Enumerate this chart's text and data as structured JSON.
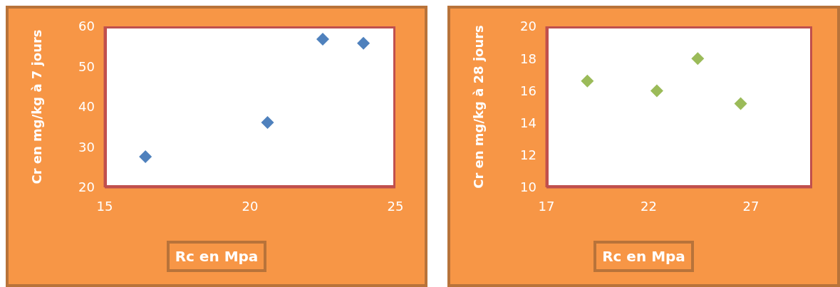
{
  "chart_data": [
    {
      "type": "scatter",
      "xlabel": "Rc en Mpa",
      "ylabel": "Cr en mg/kg  à 7 jours",
      "x": [
        16.4,
        20.6,
        22.5,
        23.9
      ],
      "values": [
        27.6,
        36.1,
        56.8,
        55.8
      ],
      "color": "#4f81bd",
      "marker": "diamond",
      "xlim": [
        15,
        25
      ],
      "xticks": [
        15,
        20,
        25
      ],
      "ylim": [
        20,
        60
      ],
      "yticks": [
        20,
        30,
        40,
        50,
        60
      ],
      "grid": false,
      "legend": false
    },
    {
      "type": "scatter",
      "xlabel": "Rc en Mpa",
      "ylabel": "Cr  en mg/kg à 28 jours",
      "x": [
        19.0,
        22.4,
        24.4,
        26.5
      ],
      "values": [
        16.6,
        16.0,
        18.0,
        15.2
      ],
      "color": "#9bbb59",
      "marker": "diamond",
      "xlim": [
        17,
        30
      ],
      "xticks": [
        17,
        22,
        27
      ],
      "ylim": [
        10,
        20
      ],
      "yticks": [
        10,
        12,
        14,
        16,
        18,
        20
      ],
      "grid": false,
      "legend": false
    }
  ]
}
